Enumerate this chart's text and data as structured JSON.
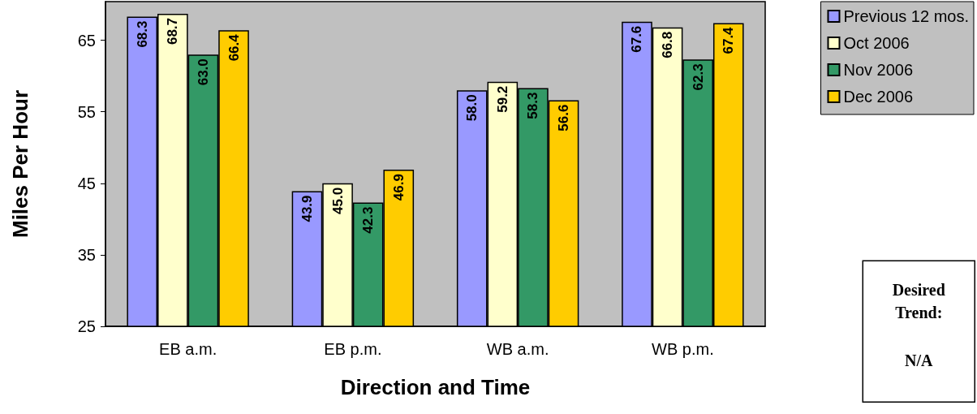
{
  "chart_data": {
    "type": "bar",
    "xlabel": "Direction and Time",
    "ylabel": "Miles Per Hour",
    "categories": [
      "EB a.m.",
      "EB p.m.",
      "WB a.m.",
      "WB p.m."
    ],
    "series": [
      {
        "name": "Previous 12 mos.",
        "color": "#9999ff",
        "values": [
          68.3,
          43.9,
          58.0,
          67.6
        ],
        "value_labels": [
          "68.3",
          "43.9",
          "58.0",
          "67.6"
        ]
      },
      {
        "name": "Oct 2006",
        "color": "#ffffcc",
        "values": [
          68.7,
          45.0,
          59.2,
          66.8
        ],
        "value_labels": [
          "68.7",
          "45.0",
          "59.2",
          "66.8"
        ]
      },
      {
        "name": "Nov 2006",
        "color": "#339966",
        "values": [
          63.0,
          42.3,
          58.3,
          62.3
        ],
        "value_labels": [
          "63.0",
          "42.3",
          "58.3",
          "62.3"
        ]
      },
      {
        "name": "Dec 2006",
        "color": "#ffcc00",
        "values": [
          66.4,
          46.9,
          56.6,
          67.4
        ],
        "value_labels": [
          "66.4",
          "46.9",
          "56.6",
          "67.4"
        ]
      }
    ],
    "ylim": [
      25,
      70.4
    ],
    "yticks": [
      25,
      35,
      45,
      55,
      65
    ],
    "grid": false,
    "legend": "top right",
    "annotations": [
      "Desired Trend:",
      "N/A"
    ]
  }
}
